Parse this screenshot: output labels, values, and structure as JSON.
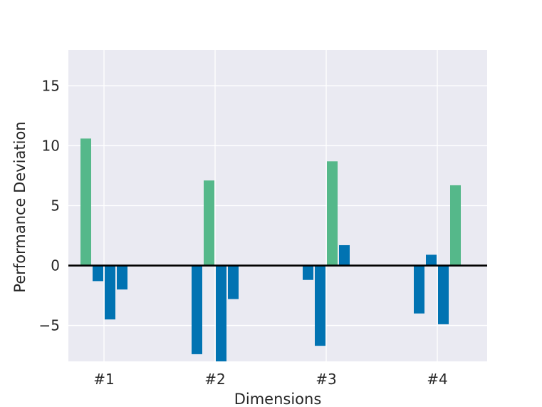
{
  "chart_data": {
    "type": "bar",
    "xlabel": "Dimensions",
    "ylabel": "Performance Deviation",
    "ylim": [
      -8,
      18
    ],
    "yticks": [
      -5,
      0,
      5,
      10,
      15
    ],
    "ytick_labels": [
      "−5",
      "0",
      "5",
      "10",
      "15"
    ],
    "categories": [
      "#1",
      "#2",
      "#3",
      "#4"
    ],
    "grid": true,
    "zero_line": true,
    "colors": {
      "positive_highlight": "#55b88a",
      "deviation": "#0173b2",
      "background": "#eaeaf2",
      "grid": "#ffffff"
    },
    "groups": [
      {
        "category": "#1",
        "bars": [
          {
            "value": 10.6,
            "color": "#55b88a"
          },
          {
            "value": -1.3,
            "color": "#0173b2"
          },
          {
            "value": -4.5,
            "color": "#0173b2"
          },
          {
            "value": -2.0,
            "color": "#0173b2"
          }
        ]
      },
      {
        "category": "#2",
        "bars": [
          {
            "value": -7.4,
            "color": "#0173b2"
          },
          {
            "value": 7.1,
            "color": "#55b88a"
          },
          {
            "value": -8.1,
            "color": "#0173b2"
          },
          {
            "value": -2.8,
            "color": "#0173b2"
          }
        ]
      },
      {
        "category": "#3",
        "bars": [
          {
            "value": -1.2,
            "color": "#0173b2"
          },
          {
            "value": -6.7,
            "color": "#0173b2"
          },
          {
            "value": 8.7,
            "color": "#55b88a"
          },
          {
            "value": 1.7,
            "color": "#0173b2"
          }
        ]
      },
      {
        "category": "#4",
        "bars": [
          {
            "value": -4.0,
            "color": "#0173b2"
          },
          {
            "value": 0.9,
            "color": "#0173b2"
          },
          {
            "value": -4.9,
            "color": "#0173b2"
          },
          {
            "value": 6.7,
            "color": "#55b88a"
          }
        ]
      }
    ]
  }
}
